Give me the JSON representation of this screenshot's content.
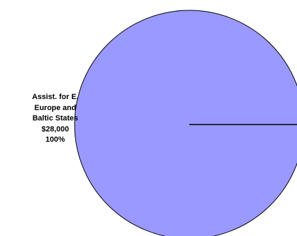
{
  "chart_data": {
    "type": "pie",
    "slices": [
      {
        "label_lines": [
          "Assist. for E.",
          "Europe and",
          "Baltic States"
        ],
        "value": 28000,
        "value_label": "$28,000",
        "percent": 100,
        "percent_label": "100%",
        "color": "#9999ff"
      }
    ],
    "colors": {
      "outline": "#000000",
      "background": "#ffffff"
    }
  }
}
